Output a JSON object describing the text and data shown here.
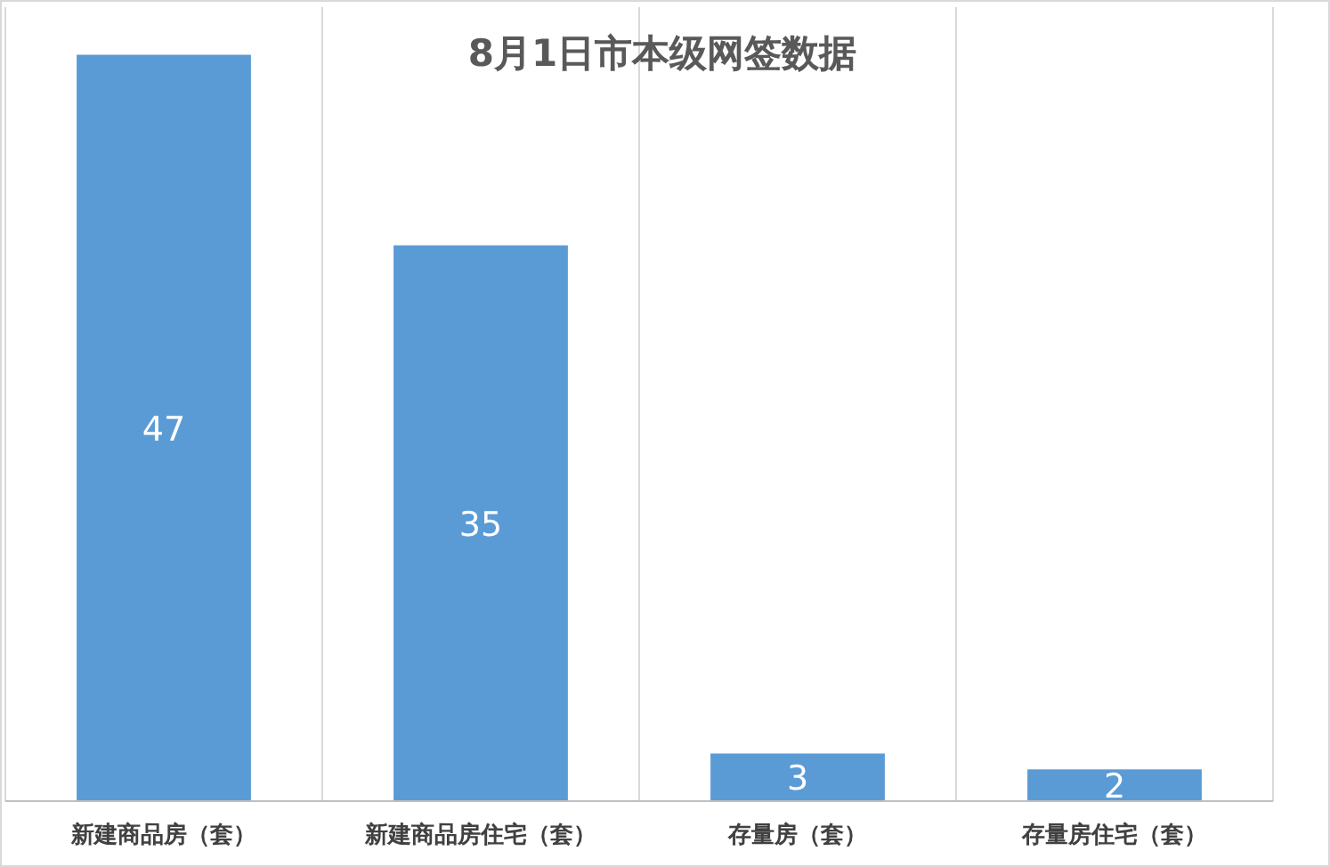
{
  "chart_data": {
    "type": "bar",
    "title": "8月1日市本级网签数据",
    "categories": [
      "新建商品房（套）",
      "新建商品房住宅（套）",
      "存量房（套）",
      "存量房住宅（套）"
    ],
    "values": [
      47,
      35,
      3,
      2
    ],
    "color": "#5b9bd5",
    "data_labels": true,
    "grid": "x"
  }
}
